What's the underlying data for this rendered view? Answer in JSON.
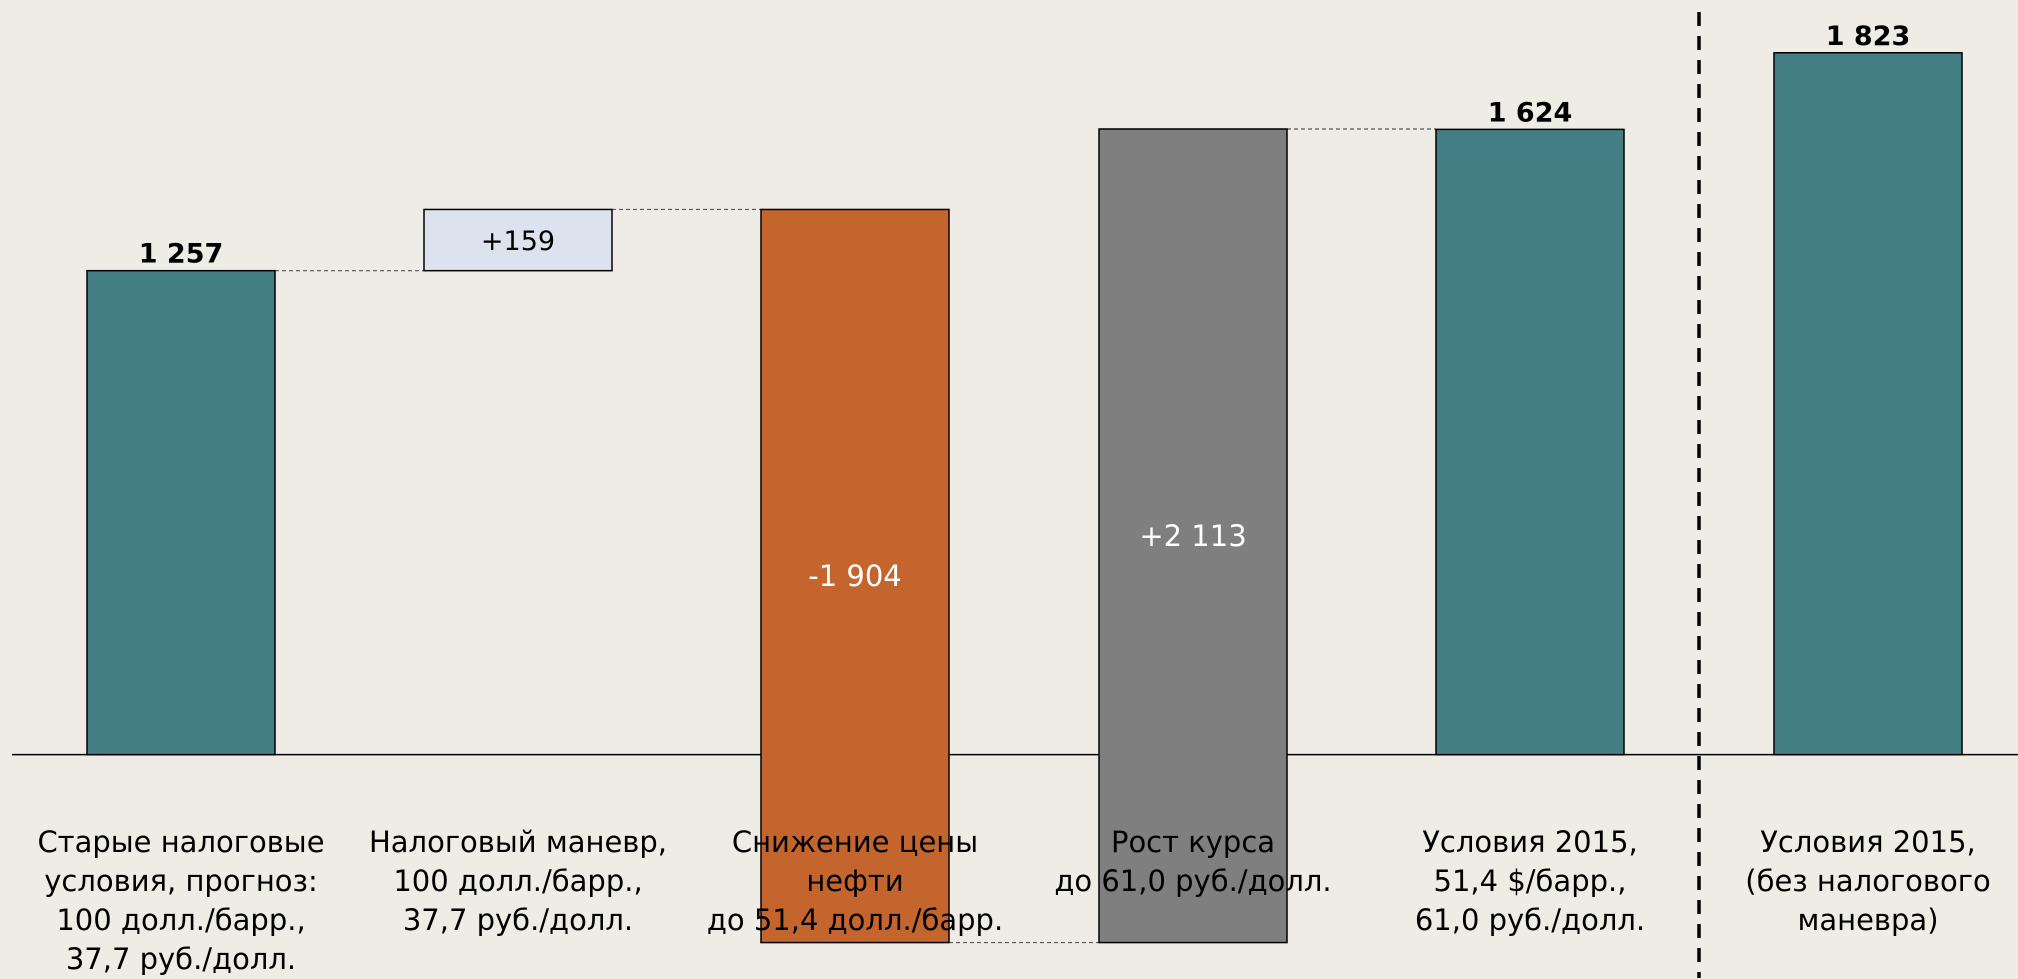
{
  "chart_data": {
    "type": "bar",
    "subtype": "waterfall",
    "categories": [
      "Старые налоговые\nусловия, прогноз:\n100 долл./барр.,\n37,7 руб./долл.",
      "Налоговый маневр,\n100 долл./барр.,\n37,7 руб./долл.",
      "Снижение цены\nнефти\nдо 51,4 долл./барр.",
      "Рост курса\nдо 61,0 руб./долл.",
      "Условия 2015,\n51,4 $/барр.,\n61,0 руб./долл.",
      "Условия 2015,\n(без налогового\nманевра)"
    ],
    "steps": [
      {
        "kind": "total",
        "value": 1257,
        "label": "1 257",
        "color": "#427E84"
      },
      {
        "kind": "delta",
        "value": 159,
        "label": "+159",
        "color": "#DCE3EF"
      },
      {
        "kind": "delta",
        "value": -1904,
        "label": "-1 904",
        "color": "#C4652E"
      },
      {
        "kind": "delta",
        "value": 2113,
        "label": "+2 113",
        "color": "#7F7F7F"
      },
      {
        "kind": "total",
        "value": 1624,
        "label": "1 624",
        "color": "#427E84"
      },
      {
        "kind": "total",
        "value": 1823,
        "label": "1 823",
        "color": "#427E84"
      }
    ],
    "ylim": [
      -580,
      1960
    ],
    "separator_after_index": 4,
    "connectors": true,
    "grid": false,
    "title": "",
    "xlabel": "",
    "ylabel": ""
  }
}
